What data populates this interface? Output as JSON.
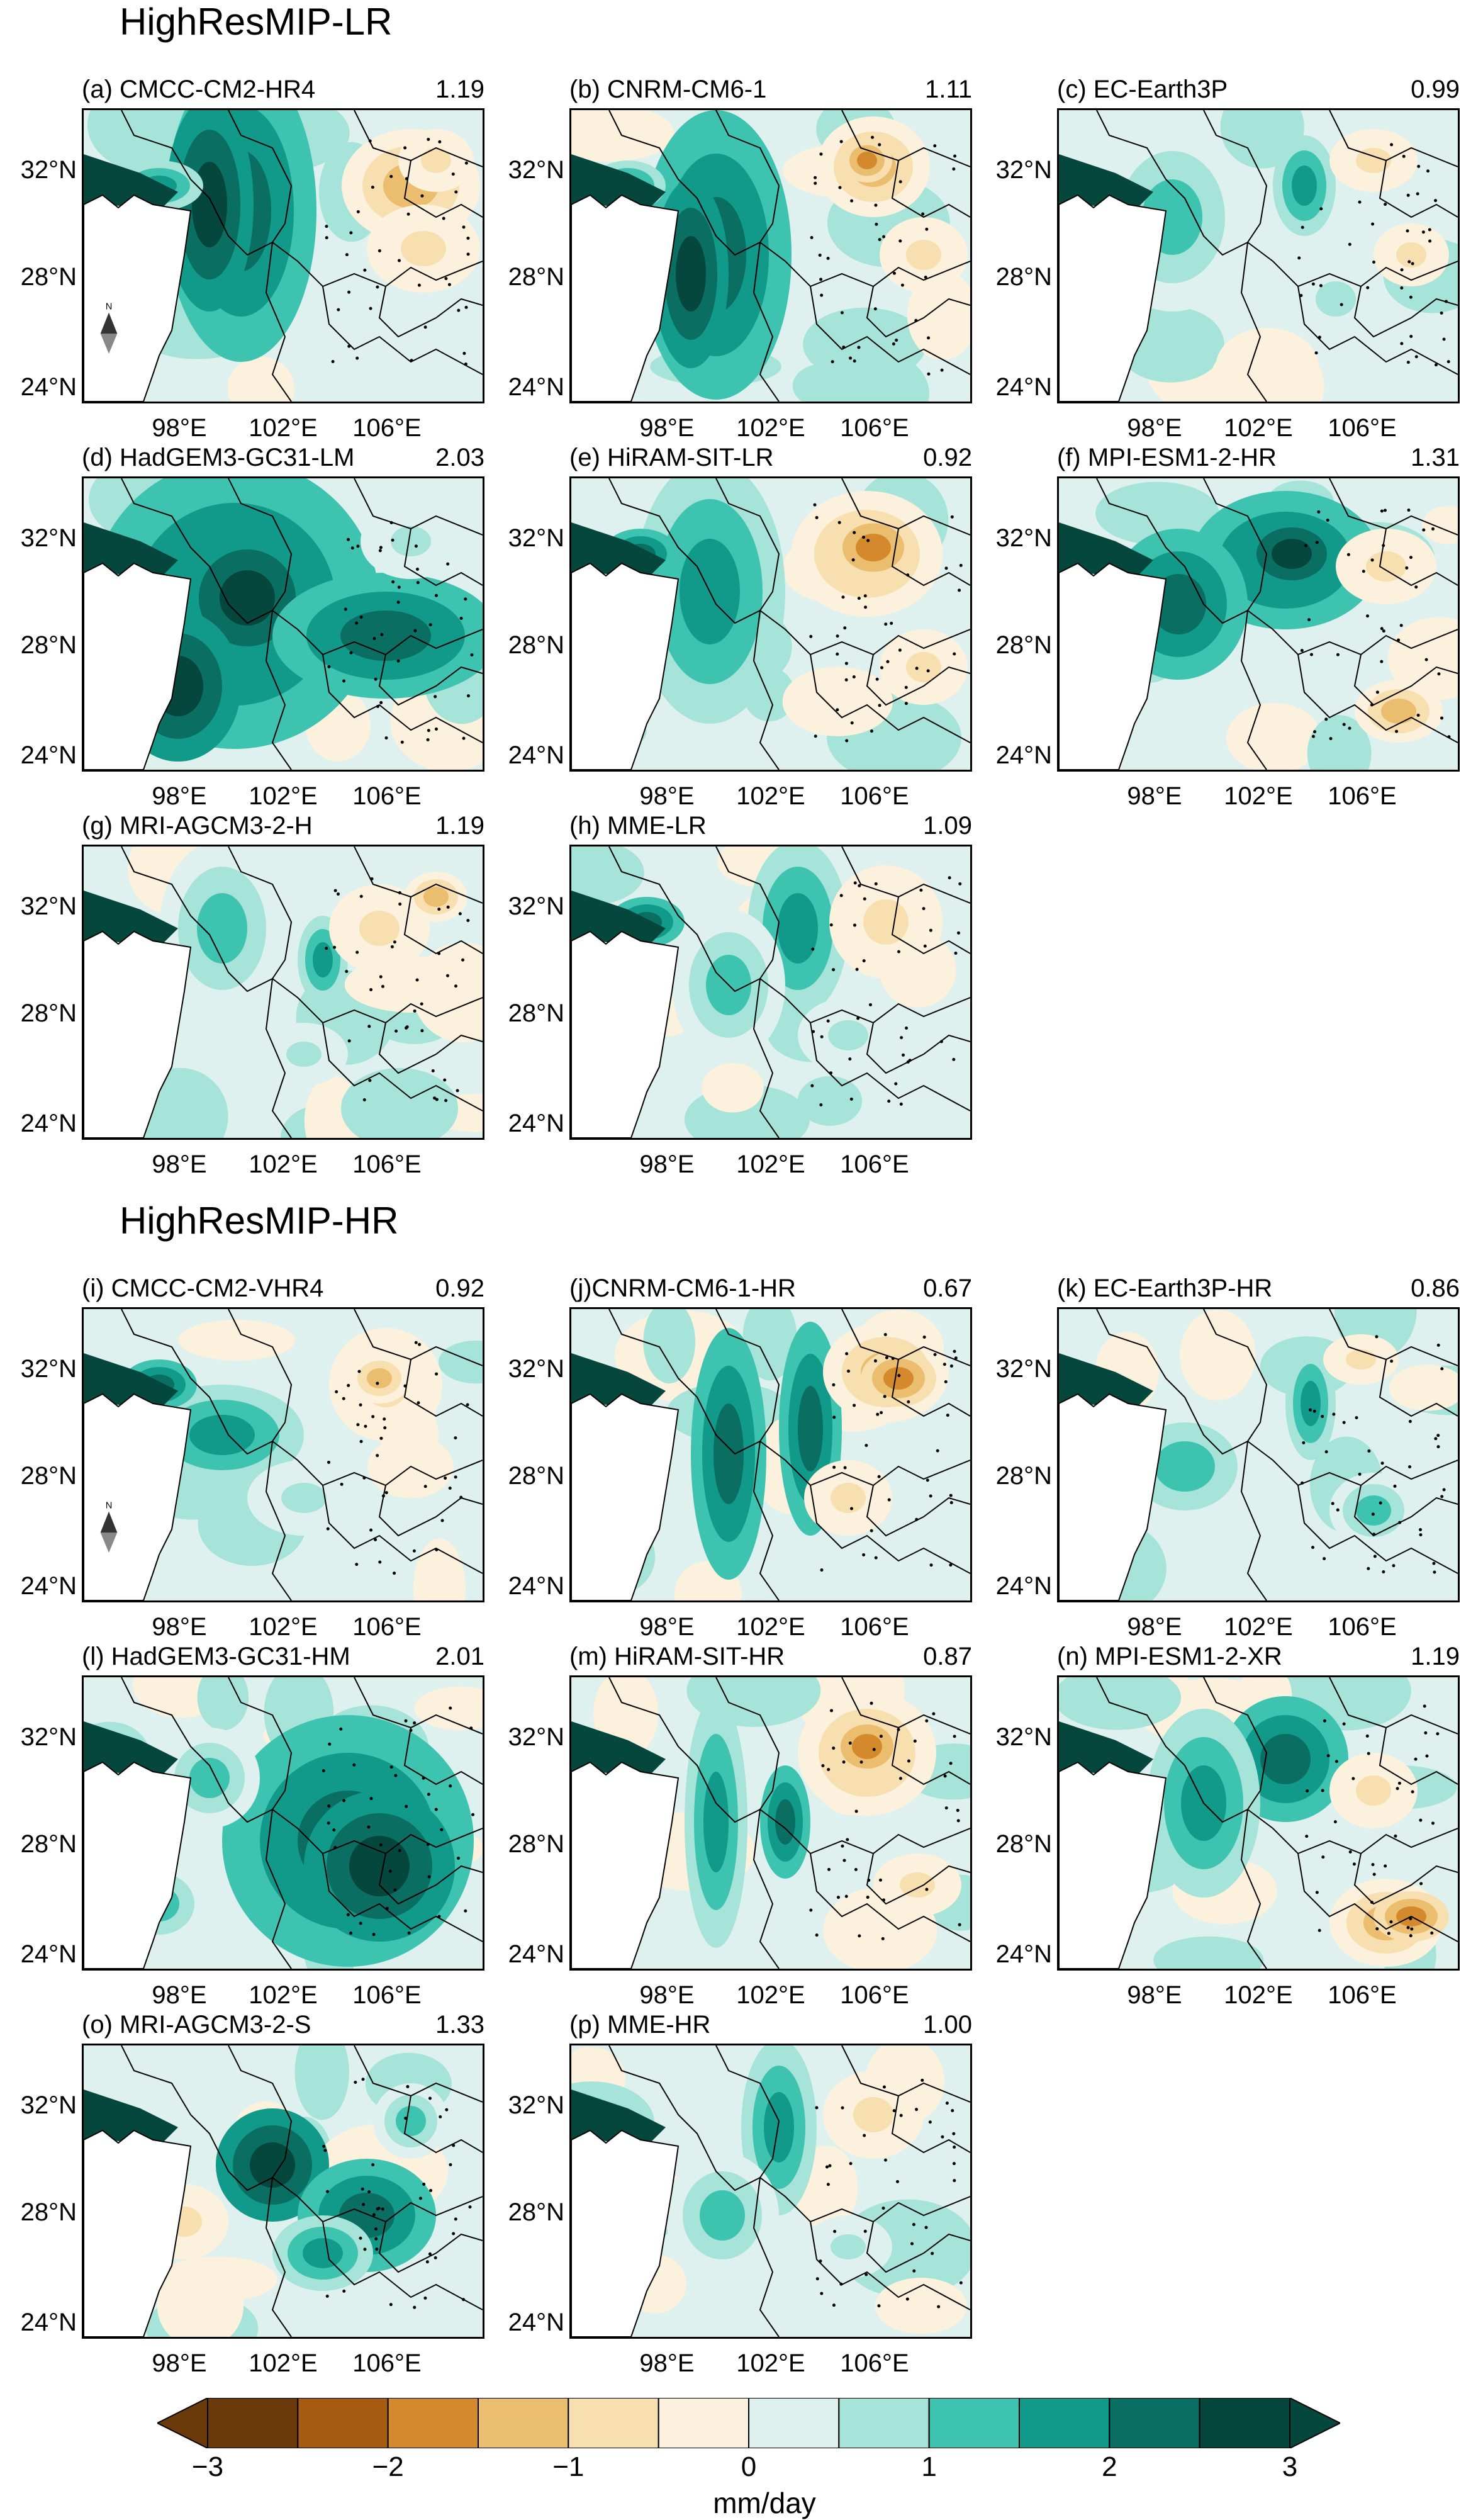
{
  "sections": [
    {
      "title": "HighResMIP-LR"
    },
    {
      "title": "HighResMIP-HR"
    }
  ],
  "panels": [
    {
      "label": "(a) CMCC-CM2-HR4",
      "value": "1.19",
      "north": "N",
      "scheme": "a"
    },
    {
      "label": "(b) CNRM-CM6-1",
      "value": "1.11",
      "scheme": "b"
    },
    {
      "label": "(c) EC-Earth3P",
      "value": "0.99",
      "scheme": "c"
    },
    {
      "label": "(d) HadGEM3-GC31-LM",
      "value": "2.03",
      "scheme": "d"
    },
    {
      "label": "(e) HiRAM-SIT-LR",
      "value": "0.92",
      "scheme": "e"
    },
    {
      "label": "(f) MPI-ESM1-2-HR",
      "value": "1.31",
      "scheme": "f"
    },
    {
      "label": "(g) MRI-AGCM3-2-H",
      "value": "1.19",
      "scheme": "g"
    },
    {
      "label": "(h) MME-LR",
      "value": "1.09",
      "scheme": "h"
    },
    {
      "label": "(i) CMCC-CM2-VHR4",
      "value": "0.92",
      "north": "N",
      "scheme": "i"
    },
    {
      "label": "(j)CNRM-CM6-1-HR",
      "value": "0.67",
      "scheme": "j"
    },
    {
      "label": "(k) EC-Earth3P-HR",
      "value": "0.86",
      "scheme": "k"
    },
    {
      "label": "(l) HadGEM3-GC31-HM",
      "value": "2.01",
      "scheme": "l"
    },
    {
      "label": "(m)  HiRAM-SIT-HR",
      "value": "0.87",
      "scheme": "m"
    },
    {
      "label": "(n) MPI-ESM1-2-XR",
      "value": "1.19",
      "scheme": "n"
    },
    {
      "label": "(o) MRI-AGCM3-2-S",
      "value": "1.33",
      "scheme": "o"
    },
    {
      "label": "(p) MME-HR",
      "value": "1.00",
      "scheme": "p"
    }
  ],
  "axes": {
    "lat_ticks": [
      "32°N",
      "28°N",
      "24°N"
    ],
    "lon_ticks": [
      "98°E",
      "102°E",
      "106°E"
    ]
  },
  "colorbar": {
    "ticks": [
      "−3",
      "−2",
      "−1",
      "0",
      "1",
      "2",
      "3"
    ],
    "unit": "mm/day",
    "colors": [
      "#6b3a0a",
      "#a65b12",
      "#d48a2c",
      "#ebbd6e",
      "#f7dfb0",
      "#fbf1dc",
      "#dff1ee",
      "#a6e3d8",
      "#3ec3b0",
      "#11998a",
      "#0a6e62",
      "#05463d"
    ]
  }
}
